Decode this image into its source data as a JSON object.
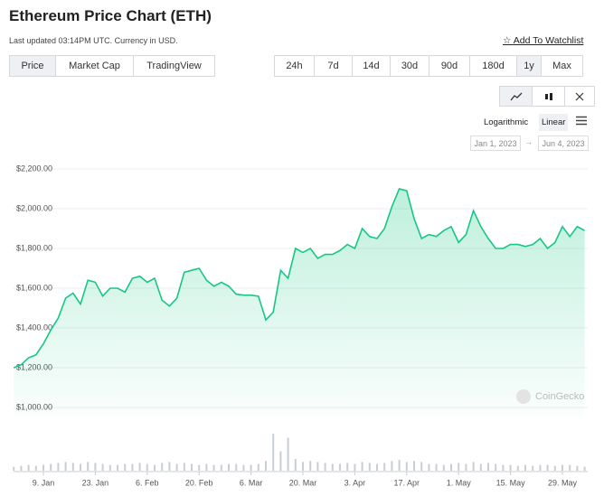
{
  "header": {
    "title": "Ethereum Price Chart (ETH)",
    "subtitle": "Last updated 03:14PM UTC. Currency in USD.",
    "watchlist": "Add To Watchlist"
  },
  "tabs": [
    "Price",
    "Market Cap",
    "TradingView"
  ],
  "ranges": [
    "24h",
    "7d",
    "14d",
    "30d",
    "90d",
    "180d",
    "1y",
    "Max"
  ],
  "scales": [
    "Logarithmic",
    "Linear"
  ],
  "dates": {
    "from": "Jan 1, 2023",
    "to": "Jun 4, 2023"
  },
  "chart_data": {
    "type": "line",
    "color": "#16c784",
    "watermark": "CoinGecko",
    "categories": [
      null,
      null,
      null,
      null,
      "9. Jan",
      null,
      null,
      null,
      null,
      null,
      null,
      "23. Jan",
      null,
      null,
      null,
      null,
      null,
      null,
      "6. Feb",
      null,
      null,
      null,
      null,
      null,
      null,
      "20. Feb",
      null,
      null,
      null,
      null,
      null,
      null,
      "6. Mar",
      null,
      null,
      null,
      null,
      null,
      null,
      "20. Mar",
      null,
      null,
      null,
      null,
      null,
      null,
      "3. Apr",
      null,
      null,
      null,
      null,
      null,
      null,
      "17. Apr",
      null,
      null,
      null,
      null,
      null,
      null,
      "1. May",
      null,
      null,
      null,
      null,
      null,
      null,
      "15. May",
      null,
      null,
      null,
      null,
      null,
      null,
      "29. May",
      null,
      null,
      null
    ],
    "values": [
      1200,
      1215,
      1250,
      1265,
      1320,
      1390,
      1450,
      1550,
      1575,
      1520,
      1640,
      1630,
      1560,
      1600,
      1600,
      1580,
      1650,
      1660,
      1630,
      1650,
      1540,
      1510,
      1550,
      1680,
      1690,
      1700,
      1640,
      1610,
      1630,
      1610,
      1570,
      1565,
      1565,
      1560,
      1440,
      1480,
      1690,
      1650,
      1800,
      1780,
      1800,
      1750,
      1770,
      1770,
      1790,
      1820,
      1800,
      1900,
      1860,
      1850,
      1900,
      2010,
      2100,
      2090,
      1950,
      1850,
      1870,
      1860,
      1890,
      1910,
      1830,
      1870,
      1990,
      1910,
      1850,
      1800,
      1800,
      1820,
      1820,
      1810,
      1820,
      1850,
      1800,
      1830,
      1910,
      1860,
      1910,
      1890
    ],
    "ylim": [
      1000,
      2200
    ],
    "yticks": [
      {
        "value": 1000,
        "label": "$1,000.00"
      },
      {
        "value": 1200,
        "label": "$1,200.00"
      },
      {
        "value": 1400,
        "label": "$1,400.00"
      },
      {
        "value": 1600,
        "label": "$1,600.00"
      },
      {
        "value": 1800,
        "label": "$1,800.00"
      },
      {
        "value": 2000,
        "label": "$2,000.00"
      },
      {
        "value": 2200,
        "label": "$2,200.00"
      }
    ],
    "grid": true,
    "volume": {
      "color": "#c9cdd4",
      "ylim": [
        0,
        40
      ],
      "values": [
        4,
        5,
        6,
        5,
        6,
        7,
        8,
        9,
        8,
        7,
        9,
        8,
        7,
        6,
        6,
        7,
        7,
        8,
        7,
        6,
        8,
        9,
        7,
        8,
        7,
        6,
        7,
        6,
        6,
        7,
        7,
        6,
        6,
        7,
        10,
        38,
        20,
        34,
        12,
        9,
        10,
        9,
        8,
        7,
        7,
        8,
        7,
        9,
        8,
        7,
        8,
        10,
        11,
        9,
        10,
        9,
        7,
        7,
        6,
        7,
        8,
        7,
        9,
        7,
        8,
        7,
        6,
        6,
        5,
        6,
        5,
        6,
        6,
        5,
        6,
        6,
        5,
        4
      ]
    }
  }
}
